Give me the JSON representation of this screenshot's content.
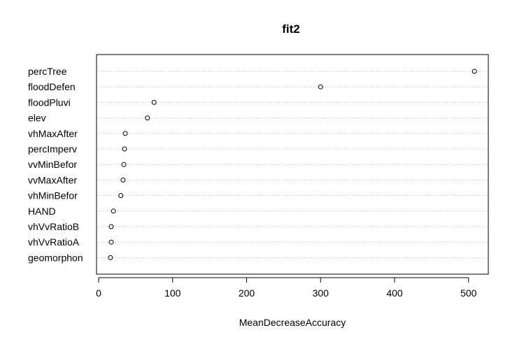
{
  "chart_data": {
    "type": "scatter",
    "subtype": "dotchart",
    "title": "fit2",
    "xlabel": "MeanDecreaseAccuracy",
    "ylabel": "",
    "xlim": [
      0,
      530
    ],
    "xticks": [
      0,
      100,
      200,
      300,
      400,
      500
    ],
    "grid": "horizontal dotted lines per category",
    "legend": "none",
    "point_style": "open circle",
    "colors": {
      "points": "#000000",
      "grid": "#bebebe",
      "axis": "#000000"
    },
    "categories": [
      "percTree",
      "floodDefen",
      "floodPluvi",
      "elev",
      "vhMaxAfter",
      "percImperv",
      "vvMinBefor",
      "vvMaxAfter",
      "vhMinBefor",
      "HAND",
      "vhVvRatioB",
      "vhVvRatioA",
      "geomorphon"
    ],
    "values": [
      508,
      300,
      75,
      66,
      36,
      35,
      34,
      33,
      30,
      20,
      17,
      17,
      16
    ]
  }
}
